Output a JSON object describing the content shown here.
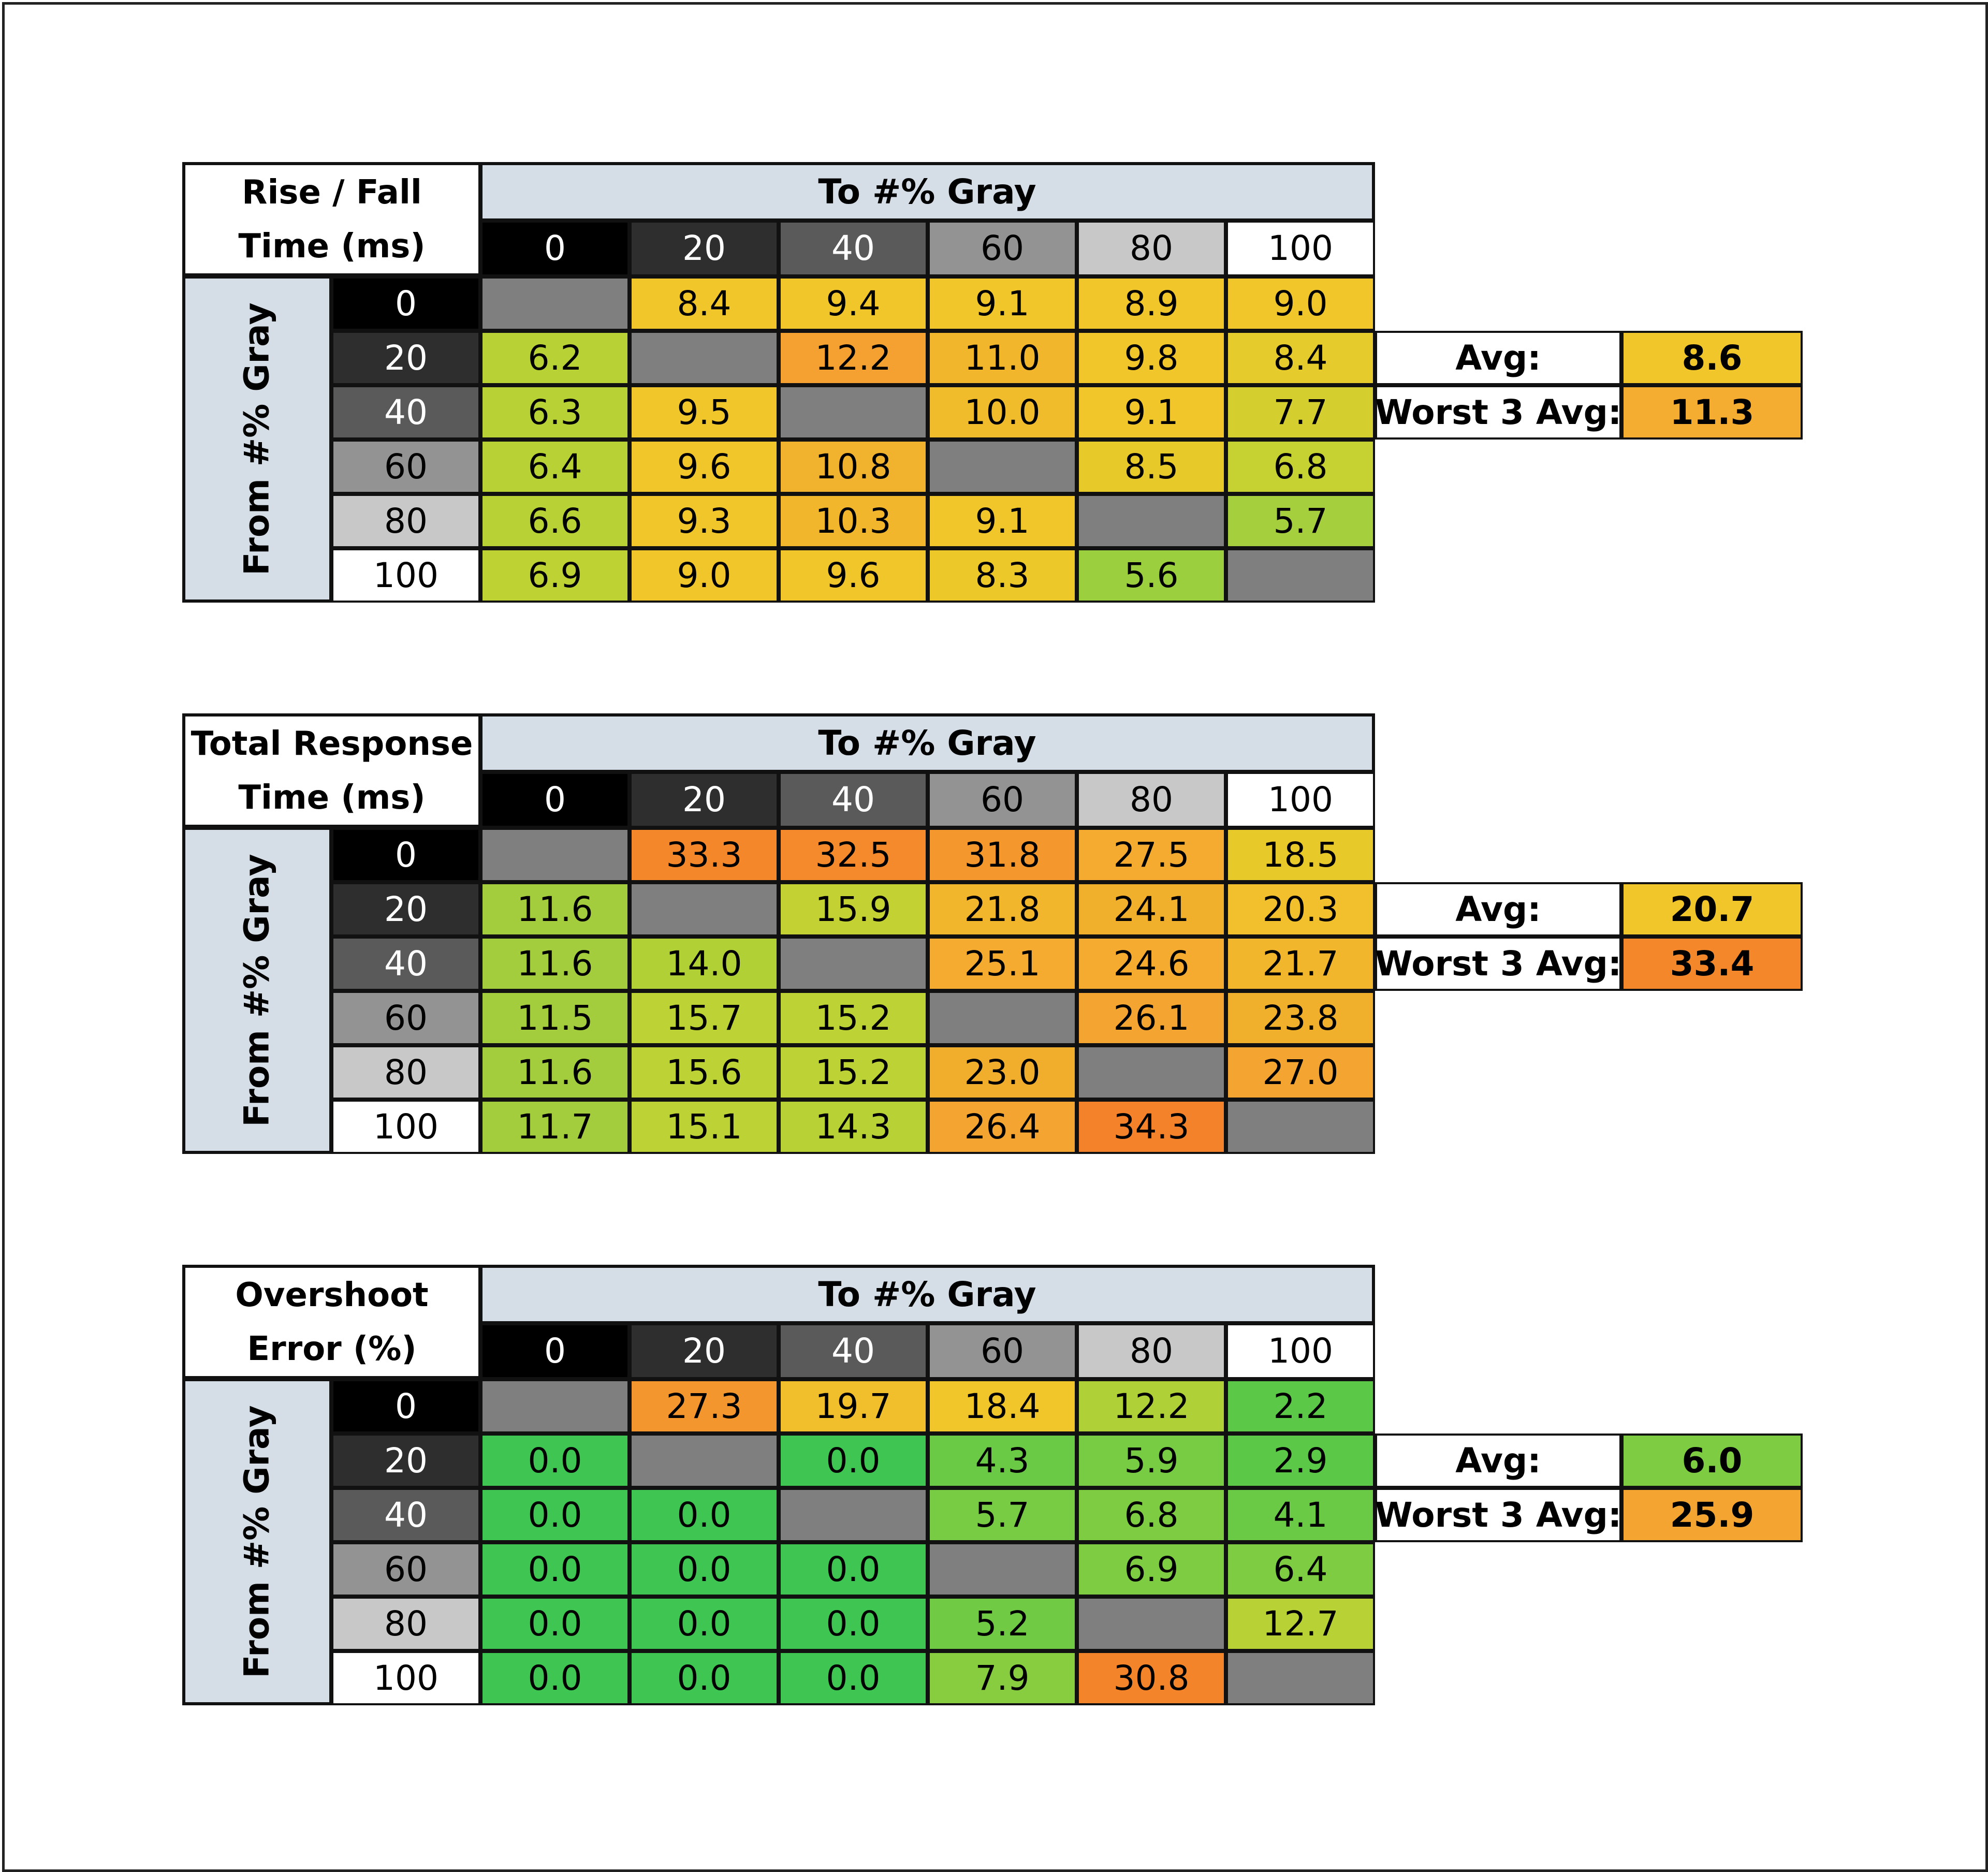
{
  "colors": {
    "header_bg": "#d5dde6",
    "diagonal": "#7f7f7f",
    "gray_levels": {
      "0": "#000000",
      "20": "#2e2e2e",
      "40": "#5a5a5a",
      "60": "#939393",
      "80": "#c8c8c8",
      "100": "#ffffff"
    }
  },
  "chart_data": [
    {
      "type": "heatmap",
      "title": [
        "Rise / Fall",
        "Time (ms)"
      ],
      "xlabel": "To #% Gray",
      "ylabel": "From #% Gray",
      "x": [
        "0",
        "20",
        "40",
        "60",
        "80",
        "100"
      ],
      "y": [
        "0",
        "20",
        "40",
        "60",
        "80",
        "100"
      ],
      "values": [
        [
          null,
          "8.4",
          "9.4",
          "9.1",
          "8.9",
          "9.0"
        ],
        [
          "6.2",
          null,
          "12.2",
          "11.0",
          "9.8",
          "8.4"
        ],
        [
          "6.3",
          "9.5",
          null,
          "10.0",
          "9.1",
          "7.7"
        ],
        [
          "6.4",
          "9.6",
          "10.8",
          null,
          "8.5",
          "6.8"
        ],
        [
          "6.6",
          "9.3",
          "10.3",
          "9.1",
          null,
          "5.7"
        ],
        [
          "6.9",
          "9.0",
          "9.6",
          "8.3",
          "5.6",
          null
        ]
      ],
      "colors": [
        [
          null,
          "#f1c62a",
          "#f1c62a",
          "#f1c62a",
          "#f1c62a",
          "#f1c62a"
        ],
        [
          "#b8d236",
          null,
          "#f4a131",
          "#f1b62c",
          "#f1c62a",
          "#e6cb2c"
        ],
        [
          "#b8d236",
          "#f1c62a",
          null,
          "#f1bc2c",
          "#f1c62a",
          "#d4ce2e"
        ],
        [
          "#b8d236",
          "#f1c62a",
          "#f1b22e",
          null,
          "#e8c92a",
          "#c6d232"
        ],
        [
          "#b8d236",
          "#f1c62a",
          "#f1b62c",
          "#f1c62a",
          null,
          "#a5cf3c"
        ],
        [
          "#bed234",
          "#f1c62a",
          "#f1c62a",
          "#edc829",
          "#9ccf3e",
          null
        ]
      ],
      "stats": {
        "avg_label": "Avg:",
        "avg": "8.6",
        "avg_color": "#f1c62a",
        "worst_label": "Worst 3 Avg:",
        "worst": "11.3",
        "worst_color": "#f4ad30"
      }
    },
    {
      "type": "heatmap",
      "title": [
        "Total Response",
        "Time (ms)"
      ],
      "xlabel": "To #% Gray",
      "ylabel": "From #% Gray",
      "x": [
        "0",
        "20",
        "40",
        "60",
        "80",
        "100"
      ],
      "y": [
        "0",
        "20",
        "40",
        "60",
        "80",
        "100"
      ],
      "values": [
        [
          null,
          "33.3",
          "32.5",
          "31.8",
          "27.5",
          "18.5"
        ],
        [
          "11.6",
          null,
          "15.9",
          "21.8",
          "24.1",
          "20.3"
        ],
        [
          "11.6",
          "14.0",
          null,
          "25.1",
          "24.6",
          "21.7"
        ],
        [
          "11.5",
          "15.7",
          "15.2",
          null,
          "26.1",
          "23.8"
        ],
        [
          "11.6",
          "15.6",
          "15.2",
          "23.0",
          null,
          "27.0"
        ],
        [
          "11.7",
          "15.1",
          "14.3",
          "26.4",
          "34.3",
          null
        ]
      ],
      "colors": [
        [
          null,
          "#f4872a",
          "#f48a2c",
          "#f4982e",
          "#f4ab30",
          "#e8c92a"
        ],
        [
          "#a3cd3c",
          null,
          "#c3d232",
          "#f1b62c",
          "#f1b02c",
          "#f1c02c"
        ],
        [
          "#a3cd3c",
          "#b1d036",
          null,
          "#f4ab30",
          "#f4ab30",
          "#f1b62c"
        ],
        [
          "#a3cd3c",
          "#bdd234",
          "#bdd234",
          null,
          "#f4a430",
          "#f1b02c"
        ],
        [
          "#a3cd3c",
          "#bdd234",
          "#bdd234",
          "#f1ae2c",
          null,
          "#f4a430"
        ],
        [
          "#a3cd3c",
          "#bdd234",
          "#b8d236",
          "#f4a430",
          "#f4822a",
          null
        ]
      ],
      "stats": {
        "avg_label": "Avg:",
        "avg": "20.7",
        "avg_color": "#f1c62a",
        "worst_label": "Worst 3 Avg:",
        "worst": "33.4",
        "worst_color": "#f4872a"
      }
    },
    {
      "type": "heatmap",
      "title": [
        "Overshoot",
        "Error (%)"
      ],
      "xlabel": "To #% Gray",
      "ylabel": "From #% Gray",
      "x": [
        "0",
        "20",
        "40",
        "60",
        "80",
        "100"
      ],
      "y": [
        "0",
        "20",
        "40",
        "60",
        "80",
        "100"
      ],
      "values": [
        [
          null,
          "27.3",
          "19.7",
          "18.4",
          "12.2",
          "2.2"
        ],
        [
          "0.0",
          null,
          "0.0",
          "4.3",
          "5.9",
          "2.9"
        ],
        [
          "0.0",
          "0.0",
          null,
          "5.7",
          "6.8",
          "4.1"
        ],
        [
          "0.0",
          "0.0",
          "0.0",
          null,
          "6.9",
          "6.4"
        ],
        [
          "0.0",
          "0.0",
          "0.0",
          "5.2",
          null,
          "12.7"
        ],
        [
          "0.0",
          "0.0",
          "0.0",
          "7.9",
          "30.8",
          null
        ]
      ],
      "colors": [
        [
          null,
          "#f4962e",
          "#f1be2c",
          "#f1c62a",
          "#b0d038",
          "#5cc848"
        ],
        [
          "#3fc552",
          null,
          "#3fc552",
          "#6aca46",
          "#78cc44",
          "#5cc848"
        ],
        [
          "#3fc552",
          "#3fc552",
          null,
          "#78cc44",
          "#7ecc42",
          "#6aca46"
        ],
        [
          "#3fc552",
          "#3fc552",
          "#3fc552",
          null,
          "#7ecc42",
          "#7ecc42"
        ],
        [
          "#3fc552",
          "#3fc552",
          "#3fc552",
          "#70ca44",
          null,
          "#b8d236"
        ],
        [
          "#3fc552",
          "#3fc552",
          "#3fc552",
          "#88cc40",
          "#f4842a",
          null
        ]
      ],
      "stats": {
        "avg_label": "Avg:",
        "avg": "6.0",
        "avg_color": "#7ecc42",
        "worst_label": "Worst 3 Avg:",
        "worst": "25.9",
        "worst_color": "#f4a430"
      }
    }
  ]
}
